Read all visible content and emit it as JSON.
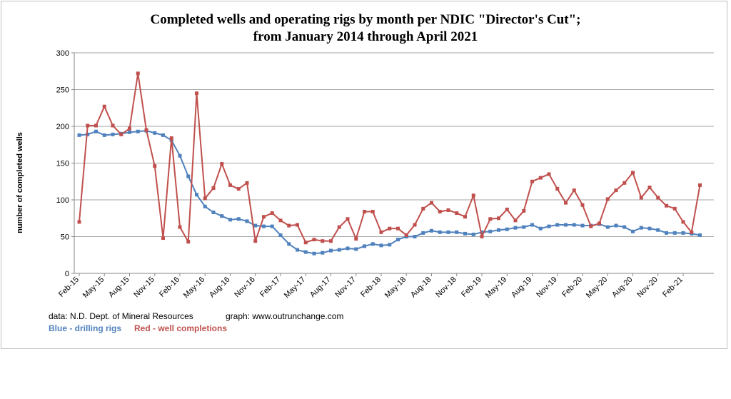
{
  "chart_data": {
    "type": "line",
    "title_line1": "Completed wells and operating rigs by month per NDIC \"Director's Cut\";",
    "title_line2": "from January 2014 through April 2021",
    "ylabel": "number of completed wells",
    "xlabel": "",
    "ylim": [
      0,
      300
    ],
    "yticks": [
      0,
      50,
      100,
      150,
      200,
      250,
      300
    ],
    "grid": true,
    "x": [
      "Feb-15",
      "Mar-15",
      "Apr-15",
      "May-15",
      "Jun-15",
      "Jul-15",
      "Aug-15",
      "Sep-15",
      "Oct-15",
      "Nov-15",
      "Dec-15",
      "Jan-16",
      "Feb-16",
      "Mar-16",
      "Apr-16",
      "May-16",
      "Jun-16",
      "Jul-16",
      "Aug-16",
      "Sep-16",
      "Oct-16",
      "Nov-16",
      "Dec-16",
      "Jan-17",
      "Feb-17",
      "Mar-17",
      "Apr-17",
      "May-17",
      "Jun-17",
      "Jul-17",
      "Aug-17",
      "Sep-17",
      "Oct-17",
      "Nov-17",
      "Dec-17",
      "Jan-18",
      "Feb-18",
      "Mar-18",
      "Apr-18",
      "May-18",
      "Jun-18",
      "Jul-18",
      "Aug-18",
      "Sep-18",
      "Oct-18",
      "Nov-18",
      "Dec-18",
      "Jan-19",
      "Feb-19",
      "Mar-19",
      "Apr-19",
      "May-19",
      "Jun-19",
      "Jul-19",
      "Aug-19",
      "Sep-19",
      "Oct-19",
      "Nov-19",
      "Dec-19",
      "Jan-20",
      "Feb-20",
      "Mar-20",
      "Apr-20",
      "May-20",
      "Jun-20",
      "Jul-20",
      "Aug-20",
      "Sep-20",
      "Oct-20",
      "Nov-20",
      "Dec-20",
      "Jan-21",
      "Feb-21",
      "Mar-21",
      "Apr-21"
    ],
    "tick_labels": [
      "Feb-15",
      "May-15",
      "Aug-15",
      "Nov-15",
      "Feb-16",
      "May-16",
      "Aug-16",
      "Nov-16",
      "Feb-17",
      "May-17",
      "Aug-17",
      "Nov-17",
      "Feb-18",
      "May-18",
      "Aug-18",
      "Nov-18",
      "Feb-19",
      "May-19",
      "Aug-19",
      "Nov-19",
      "Feb-20",
      "May-20",
      "Aug-20",
      "Nov-20",
      "Feb-21"
    ],
    "series": [
      {
        "name": "drilling rigs",
        "color": "#4f81bd",
        "values": [
          188,
          189,
          193,
          188,
          189,
          190,
          192,
          193,
          194,
          191,
          188,
          181,
          160,
          132,
          107,
          91,
          83,
          78,
          73,
          74,
          71,
          65,
          64,
          64,
          52,
          40,
          32,
          29,
          27,
          28,
          31,
          32,
          34,
          33,
          37,
          40,
          38,
          39,
          46,
          50,
          50,
          55,
          58,
          56,
          56,
          56,
          54,
          53,
          56,
          57,
          59,
          60,
          62,
          63,
          66,
          61,
          64,
          66,
          66,
          66,
          65,
          65,
          67,
          63,
          65,
          63,
          57,
          62,
          61,
          59,
          55,
          55,
          55,
          54,
          52
        ]
      },
      {
        "name": "well completions",
        "color": "#c0504d",
        "values": [
          70,
          201,
          201,
          227,
          201,
          189,
          197,
          272,
          195,
          146,
          48,
          184,
          63,
          43,
          245,
          102,
          116,
          149,
          120,
          115,
          123,
          44,
          77,
          82,
          72,
          65,
          66,
          42,
          46,
          44,
          44,
          63,
          74,
          47,
          84,
          84,
          56,
          61,
          61,
          52,
          66,
          88,
          96,
          84,
          86,
          82,
          77,
          106,
          50,
          74,
          75,
          87,
          72,
          85,
          125,
          130,
          135,
          115,
          96,
          113,
          93,
          64,
          68,
          101,
          113,
          123,
          137,
          103,
          117,
          103,
          92,
          88,
          70,
          56,
          120
        ]
      }
    ],
    "source_text": "data: N.D. Dept. of Mineral Resources",
    "graph_text": "graph:  www.outrunchange.com",
    "legend_blue": "Blue - drilling rigs",
    "legend_red": "Red - well completions"
  }
}
